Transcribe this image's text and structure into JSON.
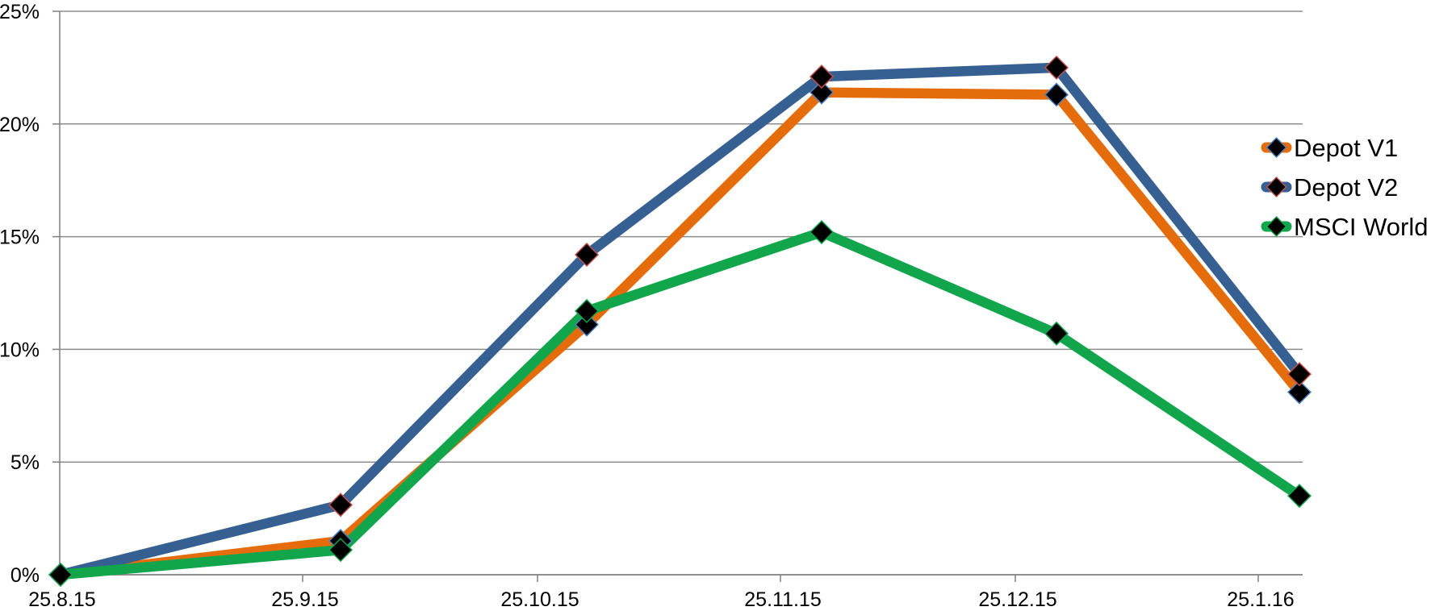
{
  "chart_data": {
    "type": "line",
    "title": "",
    "x_tick_labels": [
      "25.8.15",
      "25.9.15",
      "25.10.15",
      "25.11.15",
      "25.12.15",
      "25.1.16"
    ],
    "y_tick_labels": [
      "0%",
      "5%",
      "10%",
      "15%",
      "20%",
      "25%"
    ],
    "y_tick_values": [
      0,
      5,
      10,
      15,
      20,
      25
    ],
    "ylim": [
      0,
      25
    ],
    "grid": true,
    "legend_position": "right",
    "marker": "black-diamond",
    "series": [
      {
        "name": "Depot V1",
        "color": "#E46C0A",
        "marker_fill": "#000000",
        "marker_outline": "#4F81BD",
        "values": [
          0,
          1.5,
          11.1,
          21.4,
          21.3,
          8.1
        ]
      },
      {
        "name": "Depot V2",
        "color": "#376092",
        "marker_fill": "#000000",
        "marker_outline": "#C0504D",
        "values": [
          0,
          3.1,
          14.2,
          22.1,
          22.5,
          8.9
        ]
      },
      {
        "name": "MSCI World",
        "color": "#12A64C",
        "marker_fill": "#000000",
        "marker_outline": "#12A64C",
        "values": [
          0,
          1.1,
          11.7,
          15.2,
          10.7,
          3.5
        ]
      }
    ]
  },
  "colors": {
    "background": "#FFFFFF",
    "gridline": "#8C8C8C",
    "axis": "#7F7F7F",
    "text": "#000000"
  }
}
